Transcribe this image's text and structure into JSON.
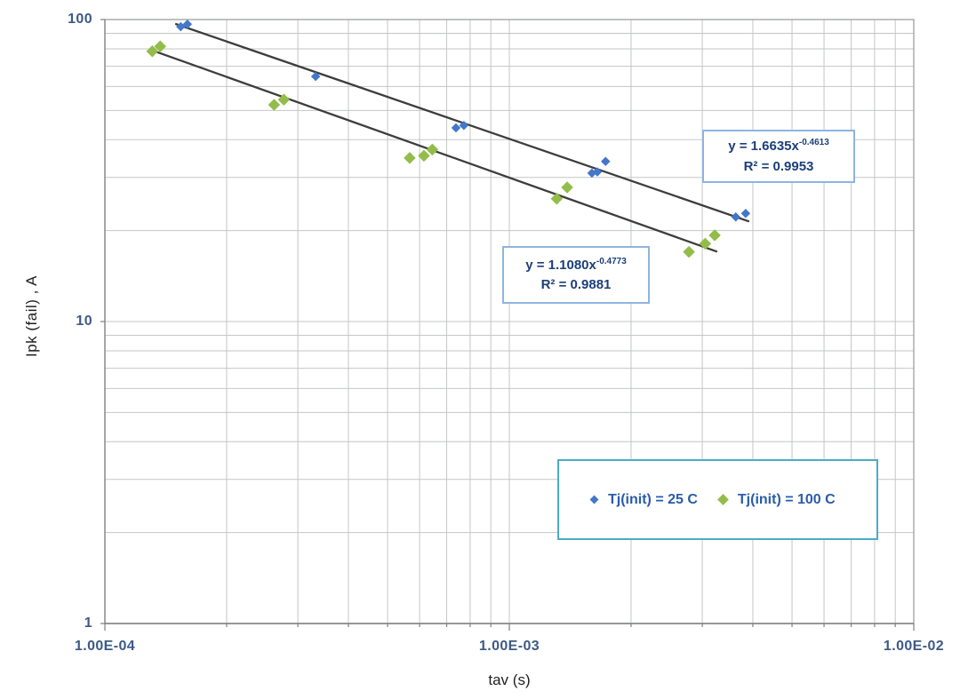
{
  "chart_data": {
    "type": "scatter",
    "title": "",
    "xlabel": "tav (s)",
    "ylabel": "Ipk (fail) ,  A",
    "x_scale": "log",
    "y_scale": "log",
    "xlim": [
      0.0001,
      0.01
    ],
    "ylim": [
      1,
      100
    ],
    "grid": "major and minor log gridlines, both axes",
    "legend_position": "inside lower-right",
    "x_tick_labels": [
      {
        "value": 0.0001,
        "label": "1.00E-04"
      },
      {
        "value": 0.001,
        "label": "1.00E-03"
      },
      {
        "value": 0.01,
        "label": "1.00E-02"
      }
    ],
    "y_tick_labels": [
      {
        "value": 1,
        "label": "1"
      },
      {
        "value": 10,
        "label": "10"
      },
      {
        "value": 100,
        "label": "100"
      }
    ],
    "trendline_color": "#3d3d3d",
    "series": [
      {
        "name": "Tj(init) = 25 C",
        "color": "#4377c9",
        "marker": "diamond",
        "points": [
          [
            0.000154,
            94.7
          ],
          [
            0.00016,
            96.5
          ],
          [
            0.000332,
            64.8
          ],
          [
            0.000738,
            43.8
          ],
          [
            0.000772,
            44.6
          ],
          [
            0.0016,
            31.0
          ],
          [
            0.00165,
            31.3
          ],
          [
            0.00173,
            33.9
          ],
          [
            0.00363,
            22.2
          ],
          [
            0.00384,
            22.8
          ]
        ],
        "trendline": {
          "coef": 1.6635,
          "exponent": -0.4613,
          "x_start": 0.00015,
          "x_end": 0.0039,
          "equation": "y = 1.6635x",
          "exponent_text": "-0.4613",
          "r_squared": "R² = 0.9953"
        }
      },
      {
        "name": "Tj(init) = 100 C",
        "color": "#93bd4a",
        "marker": "diamond",
        "points": [
          [
            0.000131,
            78.5
          ],
          [
            0.000137,
            81.5
          ],
          [
            0.000262,
            52.2
          ],
          [
            0.000277,
            54.3
          ],
          [
            0.000567,
            34.8
          ],
          [
            0.000615,
            35.4
          ],
          [
            0.000645,
            37.1
          ],
          [
            0.00131,
            25.5
          ],
          [
            0.00139,
            27.8
          ],
          [
            0.00278,
            17.0
          ],
          [
            0.00305,
            18.1
          ],
          [
            0.00322,
            19.3
          ]
        ],
        "trendline": {
          "coef": 1.108,
          "exponent": -0.4773,
          "x_start": 0.000132,
          "x_end": 0.00325,
          "equation": "y = 1.1080x",
          "exponent_text": "-0.4773",
          "r_squared": "R² = 0.9881"
        }
      }
    ]
  },
  "colors": {
    "grid": "#c3c7c5",
    "plot_border": "#9aa19e",
    "axis_line": "#7f7f7f",
    "tick_label_text": "#3d5a86",
    "legend_border": "#4bacc6",
    "legend_text": "#2a5caa",
    "annotation_border": "#8eb4e3",
    "annotation_text": "#1c3f79",
    "series_25c": "#4377c9",
    "series_100c": "#93bd4a"
  }
}
